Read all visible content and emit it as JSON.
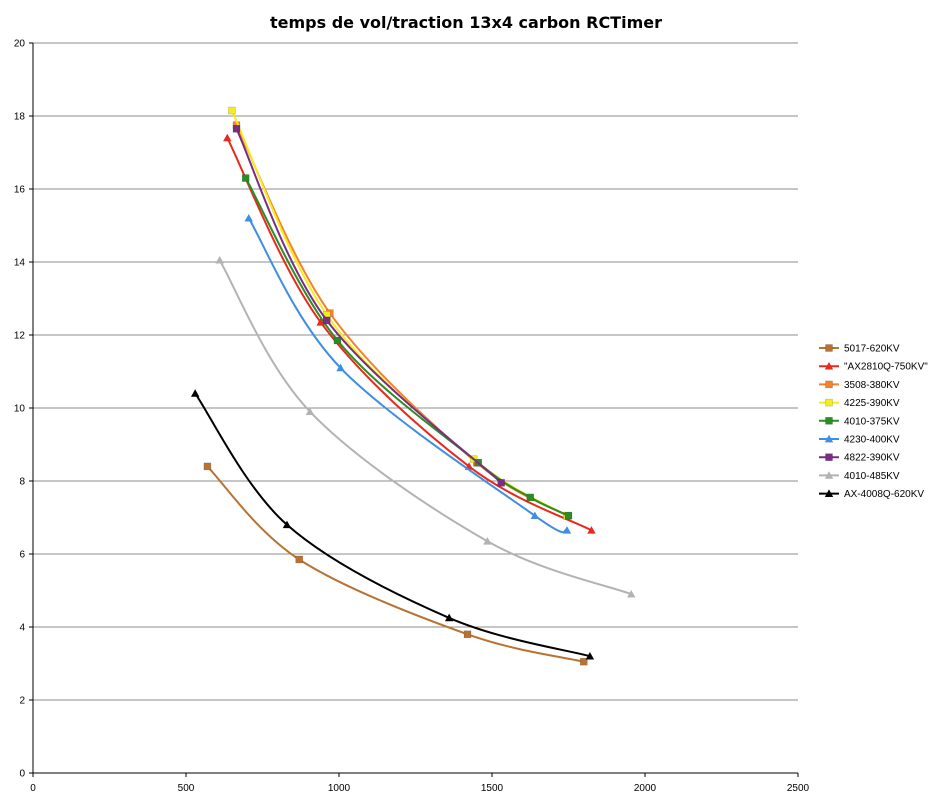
{
  "chart_data": {
    "type": "scatter",
    "title": "temps de vol/traction 13x4 carbon RCTimer",
    "xlabel": "",
    "ylabel": "",
    "xlim": [
      0,
      2500
    ],
    "ylim": [
      0,
      20
    ],
    "xticks": [
      0,
      500,
      1000,
      1500,
      2000,
      2500
    ],
    "yticks": [
      0,
      2,
      4,
      6,
      8,
      10,
      12,
      14,
      16,
      18,
      20
    ],
    "grid": "horizontal",
    "legend": "right",
    "series": [
      {
        "name": "5017-620KV",
        "color": "#b87333",
        "marker": "square",
        "points": [
          [
            570,
            8.4
          ],
          [
            870,
            5.85
          ],
          [
            1420,
            3.8
          ],
          [
            1800,
            3.05
          ]
        ]
      },
      {
        "name": "\"AX2810Q-750KV\"",
        "color": "#e8291c",
        "marker": "triangle",
        "points": [
          [
            635,
            17.4
          ],
          [
            940,
            12.35
          ],
          [
            1425,
            8.4
          ],
          [
            1825,
            6.65
          ]
        ]
      },
      {
        "name": "3508-380KV",
        "color": "#f4822b",
        "marker": "square",
        "points": [
          [
            665,
            17.75
          ],
          [
            970,
            12.6
          ],
          [
            1450,
            8.5
          ],
          [
            1745,
            7.05
          ]
        ]
      },
      {
        "name": "4225-390KV",
        "color": "#f5eb1e",
        "marker": "square",
        "points": [
          [
            650,
            18.15
          ],
          [
            960,
            12.55
          ],
          [
            1440,
            8.6
          ],
          [
            1745,
            7.05
          ]
        ]
      },
      {
        "name": "4010-375KV",
        "color": "#2b8d25",
        "marker": "square",
        "points": [
          [
            695,
            16.3
          ],
          [
            995,
            11.85
          ],
          [
            1455,
            8.5
          ],
          [
            1625,
            7.55
          ],
          [
            1750,
            7.05
          ]
        ]
      },
      {
        "name": "4230-400KV",
        "color": "#3e8ee3",
        "marker": "triangle",
        "points": [
          [
            705,
            15.2
          ],
          [
            1005,
            11.1
          ],
          [
            1640,
            7.05
          ],
          [
            1745,
            6.65
          ]
        ]
      },
      {
        "name": "4822-390KV",
        "color": "#7a2d82",
        "marker": "square",
        "points": [
          [
            665,
            17.65
          ],
          [
            960,
            12.4
          ],
          [
            1530,
            7.95
          ]
        ]
      },
      {
        "name": "4010-485KV",
        "color": "#b3b3b3",
        "marker": "triangle",
        "points": [
          [
            610,
            14.05
          ],
          [
            905,
            9.9
          ],
          [
            1485,
            6.35
          ],
          [
            1955,
            4.9
          ]
        ]
      },
      {
        "name": "AX-4008Q-620KV",
        "color": "#000000",
        "marker": "triangle",
        "points": [
          [
            530,
            10.4
          ],
          [
            830,
            6.8
          ],
          [
            1360,
            4.25
          ],
          [
            1820,
            3.2
          ]
        ]
      }
    ]
  }
}
